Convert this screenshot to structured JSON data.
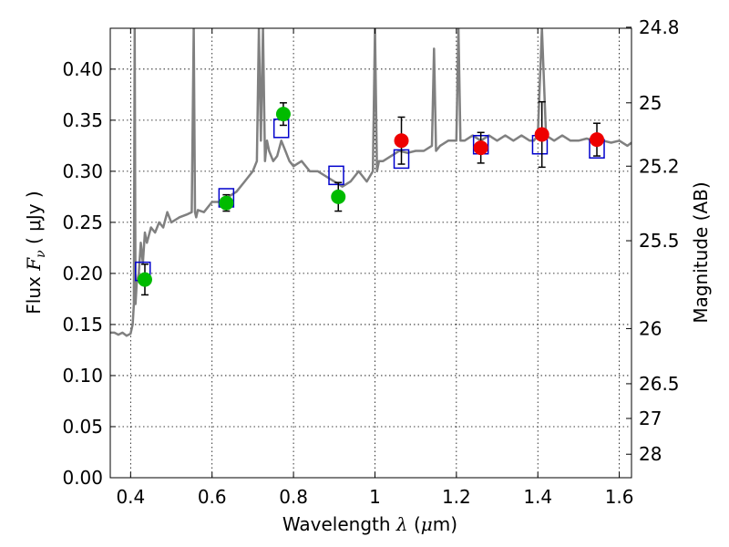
{
  "chart_data": {
    "type": "scatter",
    "title": "",
    "xlabel": "Wavelength",
    "xlabel_symbol": "λ",
    "xlabel_unit_open": " (",
    "xlabel_unit_mu": "μ",
    "xlabel_unit_rest": "m)",
    "ylabel": "Flux",
    "ylabel_symbol": "F",
    "ylabel_sub": "ν",
    "ylabel_unit": " ( μJy )",
    "y2label": "Magnitude (AB)",
    "xlim": [
      0.35,
      1.63
    ],
    "ylim": [
      0.0,
      0.44
    ],
    "grid": true,
    "grid_style": "dotted",
    "x_ticks": [
      0.4,
      0.6,
      0.8,
      1.0,
      1.2,
      1.4,
      1.6
    ],
    "x_tick_labels": [
      "0.4",
      "0.6",
      "0.8",
      "1",
      "1.2",
      "1.4",
      "1.6"
    ],
    "y_ticks": [
      0.0,
      0.05,
      0.1,
      0.15,
      0.2,
      0.25,
      0.3,
      0.35,
      0.4
    ],
    "y_tick_labels": [
      "0.00",
      "0.05",
      "0.10",
      "0.15",
      "0.20",
      "0.25",
      "0.30",
      "0.35",
      "0.40"
    ],
    "y2_ticks": [
      {
        "label": "24.8",
        "flux": 0.441
      },
      {
        "label": "25",
        "flux": 0.367
      },
      {
        "label": "25.2",
        "flux": 0.305
      },
      {
        "label": "25.5",
        "flux": 0.232
      },
      {
        "label": "26",
        "flux": 0.146
      },
      {
        "label": "26.5",
        "flux": 0.092
      },
      {
        "label": "27",
        "flux": 0.058
      },
      {
        "label": "28",
        "flux": 0.023
      }
    ],
    "colors": {
      "spectrum": "#808080",
      "model": "#0000cc",
      "green": "#00bb00",
      "red": "#ee0000",
      "errorbar": "#000000",
      "grid": "#000000"
    },
    "series": [
      {
        "role": "spectrum",
        "type": "line",
        "x": [
          0.35,
          0.36,
          0.37,
          0.38,
          0.39,
          0.4,
          0.405,
          0.408,
          0.41,
          0.412,
          0.415,
          0.42,
          0.425,
          0.43,
          0.435,
          0.44,
          0.45,
          0.46,
          0.47,
          0.48,
          0.49,
          0.5,
          0.52,
          0.54,
          0.55,
          0.555,
          0.558,
          0.561,
          0.565,
          0.58,
          0.6,
          0.62,
          0.64,
          0.66,
          0.68,
          0.7,
          0.71,
          0.715,
          0.72,
          0.725,
          0.73,
          0.735,
          0.74,
          0.75,
          0.76,
          0.77,
          0.78,
          0.79,
          0.8,
          0.82,
          0.84,
          0.86,
          0.88,
          0.9,
          0.92,
          0.94,
          0.96,
          0.98,
          0.995,
          1.0,
          1.005,
          1.01,
          1.02,
          1.04,
          1.06,
          1.08,
          1.1,
          1.12,
          1.14,
          1.145,
          1.15,
          1.16,
          1.18,
          1.2,
          1.205,
          1.21,
          1.22,
          1.24,
          1.26,
          1.28,
          1.3,
          1.32,
          1.34,
          1.36,
          1.38,
          1.39,
          1.4,
          1.41,
          1.42,
          1.44,
          1.46,
          1.48,
          1.5,
          1.52,
          1.54,
          1.56,
          1.58,
          1.6,
          1.62,
          1.63
        ],
        "y": [
          0.142,
          0.142,
          0.14,
          0.142,
          0.139,
          0.141,
          0.15,
          0.17,
          0.44,
          0.17,
          0.19,
          0.2,
          0.23,
          0.21,
          0.24,
          0.23,
          0.245,
          0.24,
          0.25,
          0.245,
          0.26,
          0.25,
          0.255,
          0.258,
          0.26,
          0.44,
          0.26,
          0.255,
          0.262,
          0.26,
          0.27,
          0.27,
          0.275,
          0.28,
          0.29,
          0.3,
          0.31,
          0.44,
          0.33,
          0.44,
          0.31,
          0.33,
          0.32,
          0.31,
          0.315,
          0.33,
          0.32,
          0.31,
          0.305,
          0.31,
          0.3,
          0.3,
          0.295,
          0.29,
          0.285,
          0.29,
          0.3,
          0.29,
          0.3,
          0.44,
          0.3,
          0.31,
          0.31,
          0.315,
          0.32,
          0.318,
          0.32,
          0.32,
          0.325,
          0.42,
          0.32,
          0.325,
          0.33,
          0.33,
          0.44,
          0.33,
          0.33,
          0.335,
          0.33,
          0.335,
          0.33,
          0.335,
          0.33,
          0.335,
          0.33,
          0.33,
          0.335,
          0.44,
          0.335,
          0.33,
          0.335,
          0.33,
          0.33,
          0.332,
          0.33,
          0.33,
          0.328,
          0.33,
          0.325,
          0.328
        ]
      },
      {
        "role": "model",
        "marker": "open-square",
        "x": [
          0.43,
          0.635,
          0.77,
          0.905,
          1.065,
          1.26,
          1.405,
          1.545
        ],
        "y": [
          0.202,
          0.274,
          0.342,
          0.296,
          0.312,
          0.326,
          0.326,
          0.322
        ]
      },
      {
        "role": "green",
        "marker": "filled-circle",
        "x": [
          0.435,
          0.635,
          0.775,
          0.91
        ],
        "y": [
          0.194,
          0.269,
          0.356,
          0.275
        ],
        "err": [
          0.015,
          0.008,
          0.011,
          0.014
        ]
      },
      {
        "role": "red",
        "marker": "filled-circle",
        "x": [
          1.065,
          1.26,
          1.41,
          1.545
        ],
        "y": [
          0.33,
          0.323,
          0.336,
          0.331
        ],
        "err": [
          0.023,
          0.015,
          0.032,
          0.016
        ]
      }
    ]
  }
}
